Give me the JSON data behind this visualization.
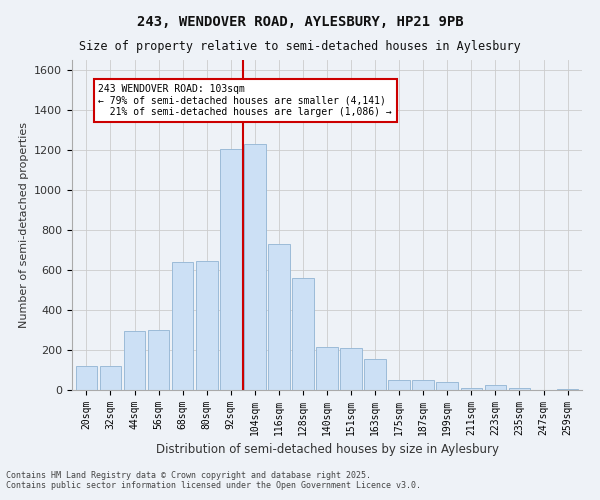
{
  "title_line1": "243, WENDOVER ROAD, AYLESBURY, HP21 9PB",
  "title_line2": "Size of property relative to semi-detached houses in Aylesbury",
  "xlabel": "Distribution of semi-detached houses by size in Aylesbury",
  "ylabel": "Number of semi-detached properties",
  "categories": [
    "20sqm",
    "32sqm",
    "44sqm",
    "56sqm",
    "68sqm",
    "80sqm",
    "92sqm",
    "104sqm",
    "116sqm",
    "128sqm",
    "140sqm",
    "151sqm",
    "163sqm",
    "175sqm",
    "187sqm",
    "199sqm",
    "211sqm",
    "223sqm",
    "235sqm",
    "247sqm",
    "259sqm"
  ],
  "values": [
    120,
    120,
    295,
    300,
    640,
    645,
    1205,
    1230,
    730,
    560,
    215,
    210,
    155,
    50,
    50,
    40,
    10,
    25,
    10,
    0,
    5
  ],
  "bar_color": "#cce0f5",
  "bar_edge_color": "#9bbbd8",
  "grid_color": "#cccccc",
  "bg_color": "#eef2f7",
  "vline_color": "#cc0000",
  "vline_x_index": 7,
  "annotation_text": "243 WENDOVER ROAD: 103sqm\n← 79% of semi-detached houses are smaller (4,141)\n  21% of semi-detached houses are larger (1,086) →",
  "annotation_box_color": "#ffffff",
  "annotation_box_edge": "#cc0000",
  "ylim": [
    0,
    1650
  ],
  "yticks": [
    0,
    200,
    400,
    600,
    800,
    1000,
    1200,
    1400,
    1600
  ],
  "footer_line1": "Contains HM Land Registry data © Crown copyright and database right 2025.",
  "footer_line2": "Contains public sector information licensed under the Open Government Licence v3.0."
}
